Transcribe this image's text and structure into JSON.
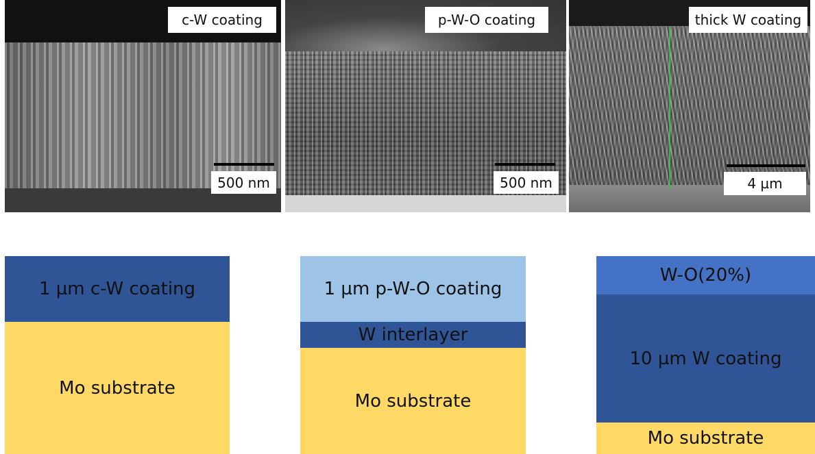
{
  "panels": [
    {
      "label": "c-W coating",
      "scale": "500 nm"
    },
    {
      "label": "p-W-O coating",
      "scale": "500 nm"
    },
    {
      "label": "thick W coating",
      "scale": "4 µm"
    }
  ],
  "diagrams": [
    {
      "layers": [
        "1 µm c-W coating",
        "Mo substrate"
      ]
    },
    {
      "layers": [
        "1 µm p-W-O coating",
        "W interlayer",
        "Mo substrate"
      ]
    },
    {
      "layers": [
        "W-O(20%)",
        "10 µm W coating",
        "Mo substrate"
      ]
    }
  ]
}
